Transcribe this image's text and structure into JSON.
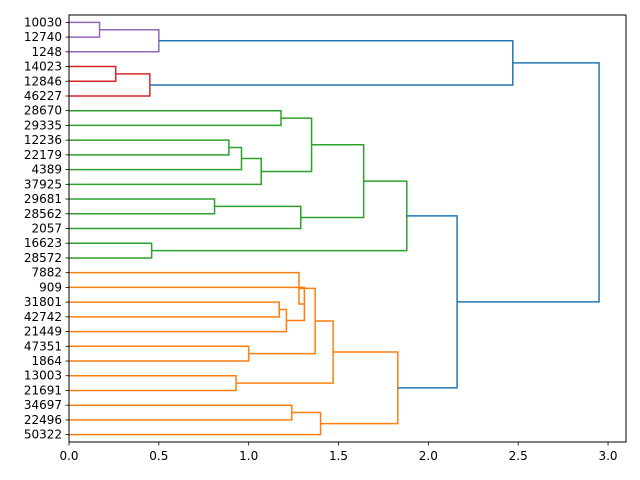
{
  "chart_data": {
    "type": "dendrogram",
    "orientation": "horizontal",
    "title": "",
    "xlabel": "",
    "ylabel": "",
    "xlim": [
      0.0,
      3.1
    ],
    "xticks": [
      0.0,
      0.5,
      1.0,
      1.5,
      2.0,
      2.5,
      3.0
    ],
    "xtick_labels": [
      "0.0",
      "0.5",
      "1.0",
      "1.5",
      "2.0",
      "2.5",
      "3.0"
    ],
    "leaves": [
      "10030",
      "12740",
      "1248",
      "14023",
      "12846",
      "46227",
      "28670",
      "29335",
      "12236",
      "22179",
      "4389",
      "37925",
      "29681",
      "28562",
      "2057",
      "16623",
      "28572",
      "7882",
      "909",
      "31801",
      "42742",
      "21449",
      "47351",
      "1864",
      "13003",
      "21691",
      "34697",
      "22496",
      "50322"
    ],
    "colors": {
      "purple": "#9467bd",
      "red": "#d62728",
      "green": "#2ca02c",
      "orange": "#ff7f0e",
      "blue": "#1f77b4"
    },
    "merges": [
      {
        "left": "leaf:0",
        "right": "leaf:1",
        "height": 0.17,
        "color": "purple"
      },
      {
        "left": "merge:0",
        "right": "leaf:2",
        "height": 0.5,
        "color": "purple"
      },
      {
        "left": "leaf:3",
        "right": "leaf:4",
        "height": 0.26,
        "color": "red"
      },
      {
        "left": "merge:2",
        "right": "leaf:5",
        "height": 0.45,
        "color": "red"
      },
      {
        "left": "merge:1",
        "right": "merge:3",
        "height": 2.47,
        "color": "blue"
      },
      {
        "left": "leaf:6",
        "right": "leaf:7",
        "height": 1.18,
        "color": "green"
      },
      {
        "left": "leaf:8",
        "right": "leaf:9",
        "height": 0.89,
        "color": "green"
      },
      {
        "left": "merge:6",
        "right": "leaf:10",
        "height": 0.96,
        "color": "green"
      },
      {
        "left": "merge:7",
        "right": "leaf:11",
        "height": 1.07,
        "color": "green"
      },
      {
        "left": "merge:5",
        "right": "merge:8",
        "height": 1.35,
        "color": "green"
      },
      {
        "left": "leaf:12",
        "right": "leaf:13",
        "height": 0.81,
        "color": "green"
      },
      {
        "left": "merge:10",
        "right": "leaf:14",
        "height": 1.29,
        "color": "green"
      },
      {
        "left": "merge:9",
        "right": "merge:11",
        "height": 1.64,
        "color": "green"
      },
      {
        "left": "leaf:15",
        "right": "leaf:16",
        "height": 0.46,
        "color": "green"
      },
      {
        "left": "merge:12",
        "right": "merge:13",
        "height": 1.88,
        "color": "green"
      },
      {
        "left": "leaf:19",
        "right": "leaf:20",
        "height": 1.17,
        "color": "orange"
      },
      {
        "left": "merge:15",
        "right": "leaf:21",
        "height": 1.21,
        "color": "orange"
      },
      {
        "left": "leaf:18",
        "right": "merge:16",
        "height": 1.31,
        "color": "orange"
      },
      {
        "left": "leaf:17",
        "right": "merge:17",
        "height": 1.28,
        "color": "orange"
      },
      {
        "left": "leaf:22",
        "right": "leaf:23",
        "height": 1.0,
        "color": "orange"
      },
      {
        "left": "merge:18",
        "right": "merge:19",
        "height": 1.37,
        "color": "orange"
      },
      {
        "left": "leaf:24",
        "right": "leaf:25",
        "height": 0.93,
        "color": "orange"
      },
      {
        "left": "merge:20",
        "right": "merge:21",
        "height": 1.47,
        "color": "orange"
      },
      {
        "left": "leaf:26",
        "right": "leaf:27",
        "height": 1.24,
        "color": "orange"
      },
      {
        "left": "merge:23",
        "right": "leaf:28",
        "height": 1.4,
        "color": "orange"
      },
      {
        "left": "merge:22",
        "right": "merge:24",
        "height": 1.83,
        "color": "orange"
      },
      {
        "left": "merge:14",
        "right": "merge:25",
        "height": 2.16,
        "color": "blue"
      },
      {
        "left": "merge:4",
        "right": "merge:26",
        "height": 2.95,
        "color": "blue"
      }
    ]
  }
}
